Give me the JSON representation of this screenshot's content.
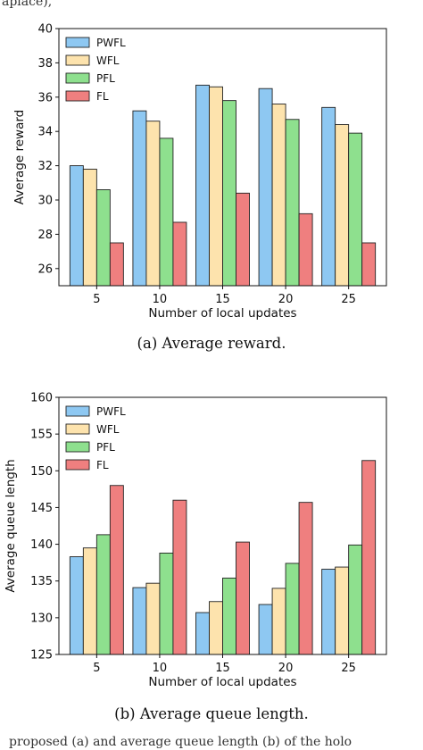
{
  "fragments": {
    "top": "aplace),",
    "bottom": "proposed (a) and average queue length (b) of the holo"
  },
  "chart_data": [
    {
      "type": "bar",
      "caption": "(a) Average reward.",
      "xlabel": "Number of local updates",
      "ylabel": "Average reward",
      "categories": [
        "5",
        "10",
        "15",
        "20",
        "25"
      ],
      "ylim": [
        25,
        40
      ],
      "yticks": [
        26,
        28,
        30,
        32,
        34,
        36,
        38,
        40
      ],
      "legend_position": "top-left",
      "series": [
        {
          "name": "PWFL",
          "color": "#8ec8f2",
          "values": [
            32.0,
            35.2,
            36.7,
            36.5,
            35.4
          ]
        },
        {
          "name": "WFL",
          "color": "#fde3ad",
          "values": [
            31.8,
            34.6,
            36.6,
            35.6,
            34.4
          ]
        },
        {
          "name": "PFL",
          "color": "#8ee08e",
          "values": [
            30.6,
            33.6,
            35.8,
            34.7,
            33.9
          ]
        },
        {
          "name": "FL",
          "color": "#ef7f7f",
          "values": [
            27.5,
            28.7,
            30.4,
            29.2,
            27.5
          ]
        }
      ]
    },
    {
      "type": "bar",
      "caption": "(b) Average queue length.",
      "xlabel": "Number of local updates",
      "ylabel": "Average queue length",
      "categories": [
        "5",
        "10",
        "15",
        "20",
        "25"
      ],
      "ylim": [
        125,
        160
      ],
      "yticks": [
        125,
        130,
        135,
        140,
        145,
        150,
        155,
        160
      ],
      "legend_position": "top-left",
      "series": [
        {
          "name": "PWFL",
          "color": "#8ec8f2",
          "values": [
            138.3,
            134.1,
            130.7,
            131.8,
            136.6
          ]
        },
        {
          "name": "WFL",
          "color": "#fde3ad",
          "values": [
            139.5,
            134.7,
            132.2,
            134.0,
            136.9
          ]
        },
        {
          "name": "PFL",
          "color": "#8ee08e",
          "values": [
            141.3,
            138.8,
            135.4,
            137.4,
            139.9
          ]
        },
        {
          "name": "FL",
          "color": "#ef7f7f",
          "values": [
            148.0,
            146.0,
            140.3,
            145.7,
            151.4
          ]
        }
      ]
    }
  ]
}
